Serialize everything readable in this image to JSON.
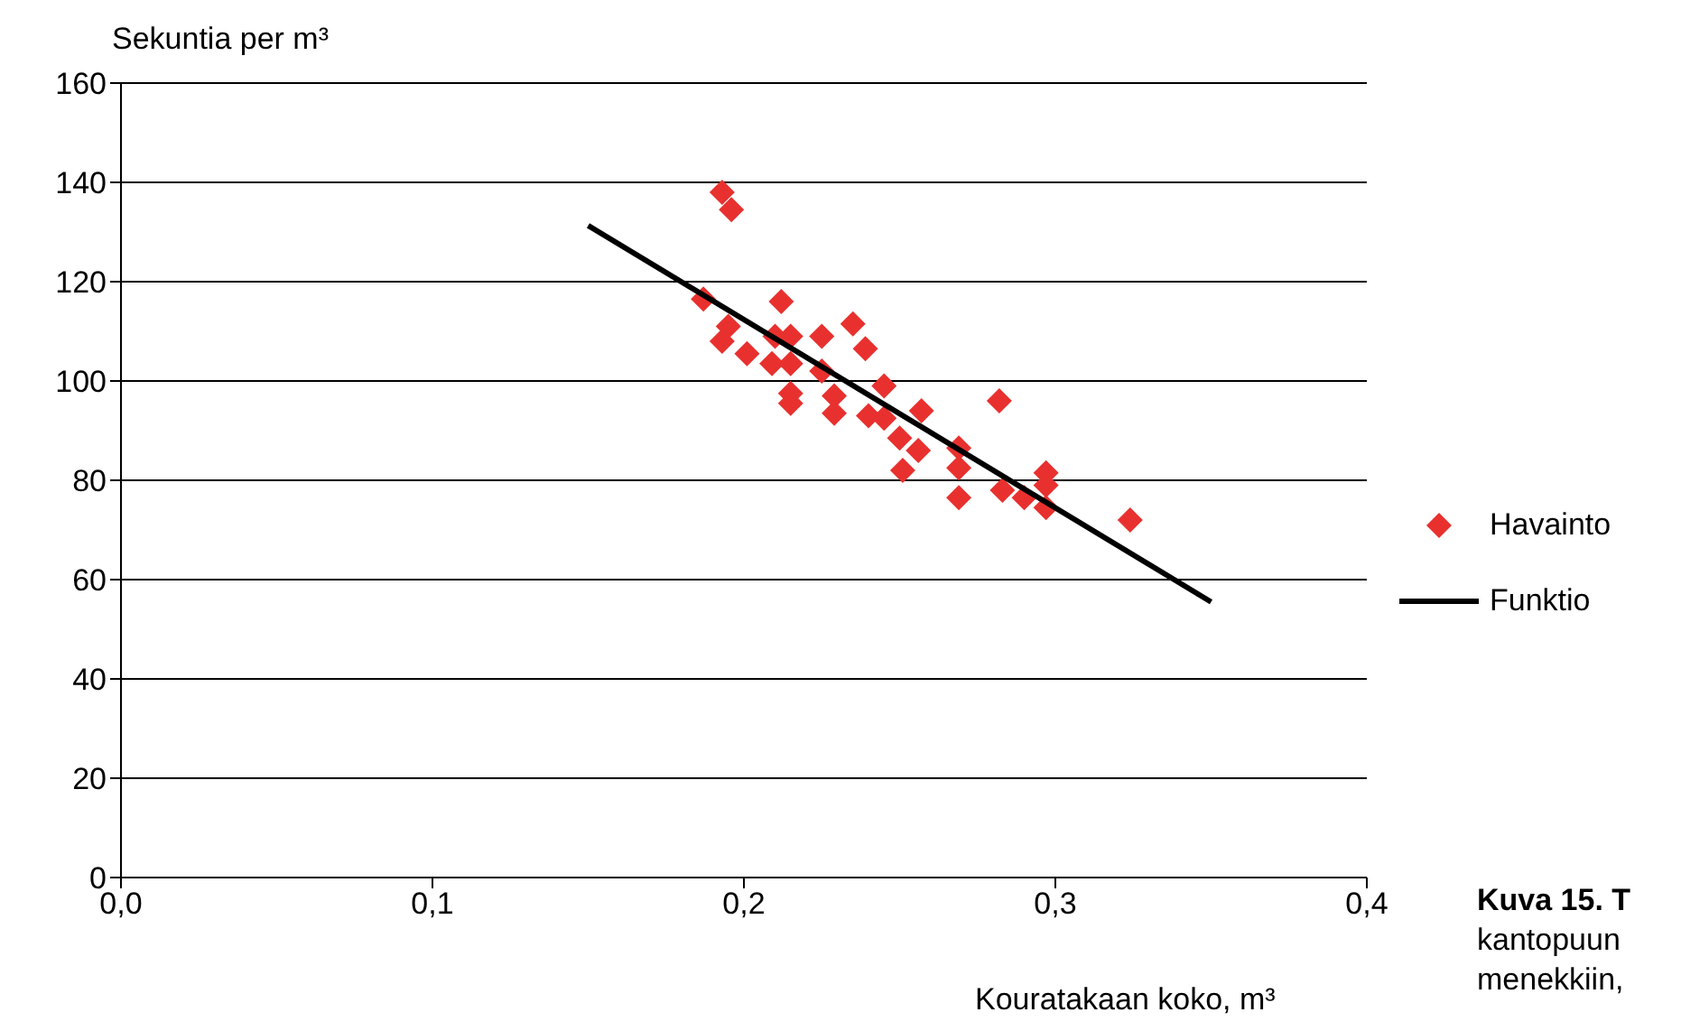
{
  "chart_data": {
    "type": "scatter",
    "xlabel": "Kouratakaan koko, m³",
    "ylabel": "Sekuntia per m³",
    "xlim": [
      0,
      0.4
    ],
    "xticks": [
      {
        "value": 0,
        "label": "0,0"
      },
      {
        "value": 0.1,
        "label": "0,1"
      },
      {
        "value": 0.2,
        "label": "0,2"
      },
      {
        "value": 0.3,
        "label": "0,3"
      },
      {
        "value": 0.4,
        "label": "0,4"
      }
    ],
    "ylim": [
      0,
      160
    ],
    "yticks": [
      0,
      20,
      40,
      60,
      80,
      100,
      120,
      140,
      160
    ],
    "grid": "y",
    "legend": "right",
    "marker": "diamond",
    "series": [
      {
        "name": "Havainto",
        "type": "scatter",
        "color": "#e8312f",
        "x": [
          0.193,
          0.196,
          0.187,
          0.212,
          0.235,
          0.225,
          0.195,
          0.193,
          0.21,
          0.215,
          0.239,
          0.201,
          0.209,
          0.215,
          0.225,
          0.245,
          0.215,
          0.215,
          0.229,
          0.229,
          0.24,
          0.245,
          0.253,
          0.257,
          0.25,
          0.256,
          0.269,
          0.282,
          0.269,
          0.251,
          0.269,
          0.283,
          0.29,
          0.297,
          0.297,
          0.297,
          0.324
        ],
        "values": [
          138,
          134.5,
          116.5,
          116,
          111.5,
          109,
          111,
          108,
          109,
          109,
          106.5,
          105.5,
          103.5,
          103.5,
          102,
          99,
          97.5,
          95.5,
          97,
          93.5,
          93,
          92.5,
          null,
          94,
          88.5,
          86,
          86.5,
          96,
          82.5,
          82,
          76.5,
          78,
          76.5,
          81.5,
          79,
          74.5,
          72
        ]
      },
      {
        "name": "Funktio",
        "type": "line",
        "color": "#000000",
        "marker": "none",
        "x": [
          0.15,
          0.35
        ],
        "values": [
          131.3,
          55.5
        ]
      }
    ],
    "annotations": [
      "Kuva 15. T",
      "kantopuun",
      "menekkiin,"
    ]
  }
}
